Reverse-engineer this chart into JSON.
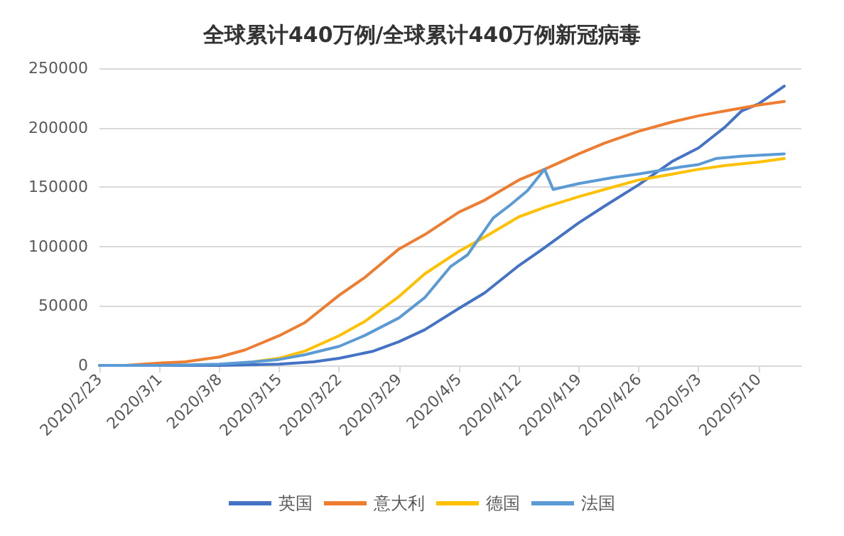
{
  "chart_data": {
    "type": "line",
    "title": "全球累计440万例/全球累计440万例新冠病毒",
    "ylim": [
      0,
      250000
    ],
    "yticks": [
      0,
      50000,
      100000,
      150000,
      200000,
      250000
    ],
    "xlim": [
      "2020-02-23",
      "2020-05-15"
    ],
    "xticks": [
      {
        "value": "2020-02-23",
        "label": "2020/2/23"
      },
      {
        "value": "2020-03-01",
        "label": "2020/3/1"
      },
      {
        "value": "2020-03-08",
        "label": "2020/3/8"
      },
      {
        "value": "2020-03-15",
        "label": "2020/3/15"
      },
      {
        "value": "2020-03-22",
        "label": "2020/3/22"
      },
      {
        "value": "2020-03-29",
        "label": "2020/3/29"
      },
      {
        "value": "2020-04-05",
        "label": "2020/4/5"
      },
      {
        "value": "2020-04-12",
        "label": "2020/4/12"
      },
      {
        "value": "2020-04-19",
        "label": "2020/4/19"
      },
      {
        "value": "2020-04-26",
        "label": "2020/4/26"
      },
      {
        "value": "2020-05-03",
        "label": "2020/5/3"
      },
      {
        "value": "2020-05-10",
        "label": "2020/5/10"
      }
    ],
    "grid": "y",
    "legend": "bottom",
    "marker": "none",
    "line_style": "solid",
    "series": [
      {
        "name": "英国",
        "color": "#4472c4",
        "x": [
          "2020-02-23",
          "2020-03-01",
          "2020-03-08",
          "2020-03-15",
          "2020-03-19",
          "2020-03-22",
          "2020-03-26",
          "2020-03-29",
          "2020-04-01",
          "2020-04-05",
          "2020-04-08",
          "2020-04-12",
          "2020-04-15",
          "2020-04-19",
          "2020-04-22",
          "2020-04-26",
          "2020-04-30",
          "2020-05-03",
          "2020-05-06",
          "2020-05-08",
          "2020-05-10",
          "2020-05-13"
        ],
        "values": [
          0,
          0,
          0,
          1000,
          3000,
          6000,
          12000,
          20000,
          30000,
          48000,
          61000,
          84000,
          99000,
          120000,
          134000,
          152000,
          172000,
          183000,
          200000,
          214000,
          220000,
          235000
        ]
      },
      {
        "name": "意大利",
        "color": "#ed7d31",
        "x": [
          "2020-02-23",
          "2020-02-26",
          "2020-03-01",
          "2020-03-04",
          "2020-03-08",
          "2020-03-11",
          "2020-03-15",
          "2020-03-18",
          "2020-03-22",
          "2020-03-25",
          "2020-03-29",
          "2020-04-01",
          "2020-04-05",
          "2020-04-08",
          "2020-04-12",
          "2020-04-15",
          "2020-04-19",
          "2020-04-22",
          "2020-04-26",
          "2020-04-30",
          "2020-05-03",
          "2020-05-06",
          "2020-05-10",
          "2020-05-13"
        ],
        "values": [
          0,
          0,
          2000,
          3000,
          7000,
          13000,
          25000,
          36000,
          59000,
          74000,
          98000,
          110000,
          129000,
          139000,
          156000,
          165000,
          178000,
          187000,
          197000,
          205000,
          210000,
          214000,
          219000,
          222000
        ]
      },
      {
        "name": "德国",
        "color": "#ffc000",
        "x": [
          "2020-03-12",
          "2020-03-15",
          "2020-03-18",
          "2020-03-22",
          "2020-03-25",
          "2020-03-29",
          "2020-04-01",
          "2020-04-05",
          "2020-04-08",
          "2020-04-12",
          "2020-04-15",
          "2020-04-19",
          "2020-04-22",
          "2020-04-26",
          "2020-04-30",
          "2020-05-03",
          "2020-05-06",
          "2020-05-10",
          "2020-05-13"
        ],
        "values": [
          3000,
          6000,
          12000,
          25000,
          37000,
          58000,
          77000,
          96000,
          108000,
          125000,
          133000,
          142000,
          148000,
          156000,
          161000,
          165000,
          168000,
          171000,
          174000
        ]
      },
      {
        "name": "法国",
        "color": "#5b9bd5",
        "x": [
          "2020-02-23",
          "2020-03-01",
          "2020-03-08",
          "2020-03-12",
          "2020-03-15",
          "2020-03-18",
          "2020-03-22",
          "2020-03-25",
          "2020-03-29",
          "2020-04-01",
          "2020-04-04",
          "2020-04-06",
          "2020-04-09",
          "2020-04-11",
          "2020-04-13",
          "2020-04-15",
          "2020-04-16",
          "2020-04-19",
          "2020-04-23",
          "2020-04-26",
          "2020-05-01",
          "2020-05-03",
          "2020-05-05",
          "2020-05-08",
          "2020-05-13"
        ],
        "values": [
          0,
          0,
          1000,
          3000,
          5000,
          9000,
          16000,
          25200,
          40000,
          57000,
          83000,
          93000,
          124000,
          135000,
          147000,
          165000,
          148000,
          153000,
          158000,
          161000,
          167000,
          169000,
          174000,
          176000,
          178000
        ]
      }
    ]
  }
}
